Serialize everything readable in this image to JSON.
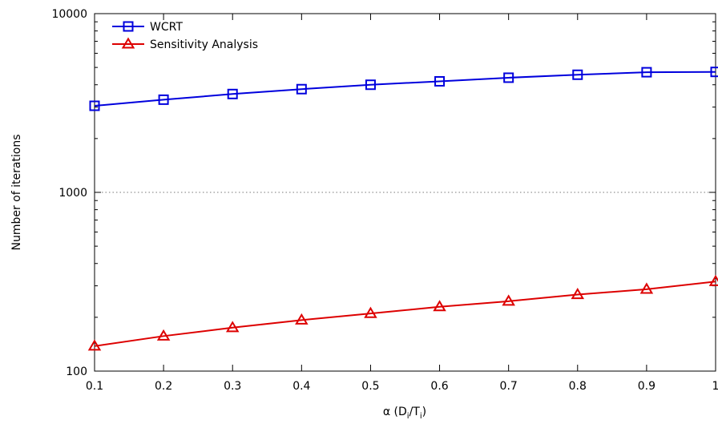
{
  "chart_data": {
    "type": "line",
    "title": "",
    "xlabel": {
      "prefix": "α (D",
      "sub1": "i",
      "mid": "/T",
      "sub2": "i",
      "suffix": ")"
    },
    "ylabel": "Number of iterations",
    "x": [
      0.1,
      0.2,
      0.3,
      0.4,
      0.5,
      0.6,
      0.7,
      0.8,
      0.9,
      1.0
    ],
    "xlim": [
      0.1,
      1.0
    ],
    "ylim": [
      100,
      10000
    ],
    "yscale": "log",
    "grid": "dotted line at y = 1000",
    "legend": "top-left",
    "x_ticks": [
      {
        "value": 0.1,
        "label": "0.1"
      },
      {
        "value": 0.2,
        "label": "0.2"
      },
      {
        "value": 0.3,
        "label": "0.3"
      },
      {
        "value": 0.4,
        "label": "0.4"
      },
      {
        "value": 0.5,
        "label": "0.5"
      },
      {
        "value": 0.6,
        "label": "0.6"
      },
      {
        "value": 0.7,
        "label": "0.7"
      },
      {
        "value": 0.8,
        "label": "0.8"
      },
      {
        "value": 0.9,
        "label": "0.9"
      },
      {
        "value": 1.0,
        "label": "1"
      }
    ],
    "y_ticks": [
      {
        "value": 100,
        "label": "100"
      },
      {
        "value": 1000,
        "label": "1000"
      },
      {
        "value": 10000,
        "label": "10000"
      }
    ],
    "series": [
      {
        "name": "WCRT",
        "color": "#0000dd",
        "marker": "square",
        "values": [
          3050,
          3300,
          3550,
          3780,
          4000,
          4180,
          4380,
          4550,
          4700,
          4720
        ]
      },
      {
        "name": "Sensitivity Analysis",
        "color": "#dd0000",
        "marker": "triangle",
        "values": [
          138,
          157,
          175,
          193,
          210,
          229,
          246,
          268,
          287,
          317
        ]
      }
    ]
  }
}
